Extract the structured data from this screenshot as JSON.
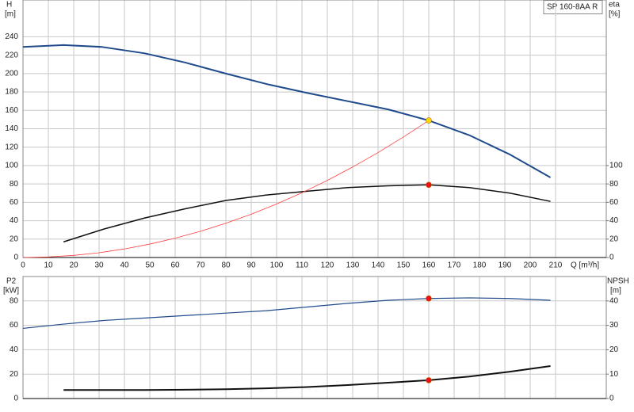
{
  "chart_data": [
    {
      "type": "line",
      "title": "SP 160-8AA R",
      "ylabel": "H",
      "yunit": "[m]",
      "y2label": "eta",
      "y2unit": "[%]",
      "xlabel": "Q [m³/h]",
      "xlim": [
        0,
        230
      ],
      "xticks": [
        0,
        10,
        20,
        30,
        40,
        50,
        60,
        70,
        80,
        90,
        100,
        110,
        120,
        130,
        140,
        150,
        160,
        170,
        180,
        190,
        200,
        210
      ],
      "ylim": [
        0,
        280
      ],
      "yticks": [
        0,
        20,
        40,
        60,
        80,
        100,
        120,
        140,
        160,
        180,
        200,
        220,
        240
      ],
      "y2lim": [
        0,
        280
      ],
      "y2ticks": [
        0,
        20,
        40,
        60,
        80,
        100
      ],
      "grid": true,
      "series": [
        {
          "color": "#1f4a8c",
          "line_width": 2,
          "x": [
            0,
            16,
            31,
            48,
            64,
            80,
            97,
            112,
            128,
            144,
            160,
            176,
            192,
            208
          ],
          "values": [
            229,
            231,
            229,
            222,
            212,
            200,
            188,
            179,
            170,
            161,
            149,
            133,
            112,
            87
          ]
        },
        {
          "color": "#111111",
          "line_width": 1.5,
          "axis": "y2",
          "x": [
            16,
            32,
            48,
            64,
            80,
            96,
            112,
            128,
            144,
            160,
            176,
            192,
            208
          ],
          "values": [
            17,
            31,
            43,
            53,
            62,
            68,
            72,
            76,
            78,
            79,
            76,
            70,
            61
          ]
        },
        {
          "color": "#ff4040",
          "line_width": 0.8,
          "x": [
            0,
            10,
            20,
            30,
            40,
            50,
            60,
            70,
            80,
            90,
            100,
            110,
            120,
            130,
            140,
            150,
            160
          ],
          "values": [
            0,
            0.6,
            2.3,
            5.2,
            9.3,
            14.6,
            21,
            28.5,
            37.3,
            47.1,
            58.2,
            70.4,
            83.8,
            98.4,
            114.1,
            131,
            149
          ]
        }
      ],
      "points": [
        {
          "x": 160,
          "y": 149,
          "color": "#ffd700"
        },
        {
          "x": 160,
          "y": 79,
          "axis": "y2",
          "color": "#ee1111"
        }
      ]
    },
    {
      "type": "line",
      "ylabel": "P2",
      "yunit": "[kW]",
      "y2label": "NPSH",
      "y2unit": "[m]",
      "xlim": [
        0,
        230
      ],
      "ylim": [
        0,
        100
      ],
      "yticks": [
        0,
        20,
        40,
        60,
        80
      ],
      "y2lim": [
        0,
        50
      ],
      "y2ticks": [
        0,
        10,
        20,
        30,
        40
      ],
      "grid": true,
      "series": [
        {
          "color": "#1f4a8c",
          "line_width": 1.2,
          "x": [
            0,
            16,
            32,
            48,
            64,
            80,
            96,
            112,
            128,
            144,
            160,
            176,
            192,
            208
          ],
          "values": [
            57.5,
            61,
            64,
            66,
            68,
            70,
            72,
            75,
            78,
            80.5,
            82,
            82.5,
            82,
            80.5
          ]
        },
        {
          "color": "#111111",
          "line_width": 2,
          "axis": "y2",
          "x": [
            16,
            32,
            48,
            64,
            80,
            96,
            112,
            128,
            144,
            160,
            176,
            192,
            208
          ],
          "values": [
            3.5,
            3.5,
            3.5,
            3.6,
            3.8,
            4.2,
            4.7,
            5.5,
            6.5,
            7.5,
            9,
            11,
            13.3
          ]
        }
      ],
      "points": [
        {
          "x": 160,
          "y": 82,
          "color": "#ee1111"
        },
        {
          "x": 160,
          "y": 7.5,
          "axis": "y2",
          "color": "#ee1111"
        }
      ]
    }
  ]
}
